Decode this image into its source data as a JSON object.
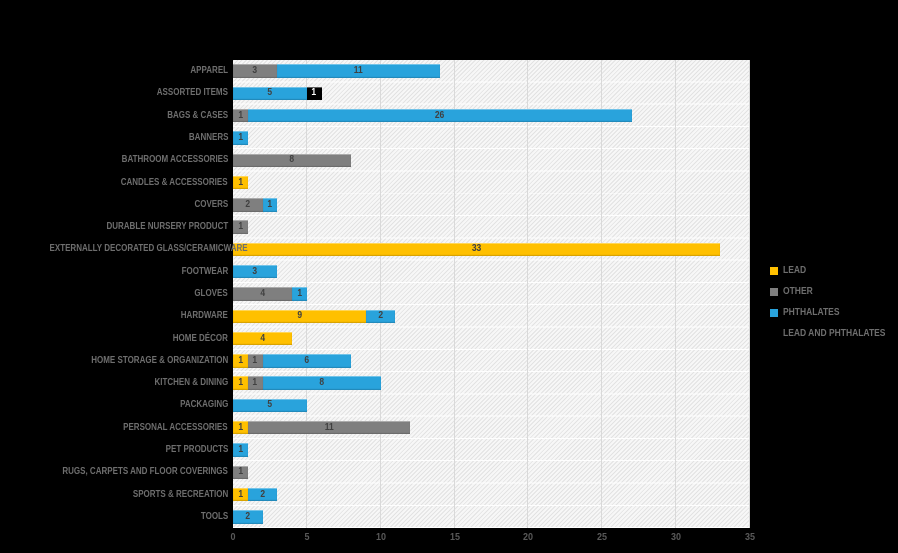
{
  "chart_data": {
    "type": "bar",
    "orientation": "horizontal-stacked",
    "title": "",
    "categories": [
      "APPAREL",
      "ASSORTED ITEMS",
      "BAGS & CASES",
      "BANNERS",
      "BATHROOM ACCESSORIES",
      "CANDLES & ACCESSORIES",
      "COVERS",
      "DURABLE NURSERY PRODUCT",
      "EXTERNALLY DECORATED GLASS/CERAMICWARE",
      "FOOTWEAR",
      "GLOVES",
      "HARDWARE",
      "HOME DÉCOR",
      "HOME STORAGE & ORGANIZATION",
      "KITCHEN & DINING",
      "PACKAGING",
      "PERSONAL ACCESSORIES",
      "PET PRODUCTS",
      "RUGS, CARPETS AND FLOOR COVERINGS",
      "SPORTS & RECREATION",
      "TOOLS"
    ],
    "series": [
      {
        "name": "LEAD",
        "color": "#FFC000",
        "values": [
          0,
          0,
          0,
          0,
          0,
          1,
          0,
          0,
          33,
          0,
          0,
          9,
          4,
          1,
          1,
          0,
          1,
          0,
          0,
          1,
          0
        ]
      },
      {
        "name": "OTHER",
        "color": "#7F7F7F",
        "values": [
          3,
          0,
          1,
          0,
          8,
          0,
          2,
          1,
          0,
          0,
          4,
          0,
          0,
          1,
          1,
          0,
          11,
          0,
          1,
          0,
          0
        ]
      },
      {
        "name": "PHTHALATES",
        "color": "#29A3DC",
        "values": [
          11,
          5,
          26,
          1,
          0,
          0,
          1,
          0,
          0,
          3,
          1,
          2,
          0,
          6,
          8,
          5,
          0,
          1,
          0,
          2,
          2
        ]
      },
      {
        "name": "LEAD AND PHTHALATES",
        "color": "#000000",
        "values": [
          0,
          1,
          0,
          0,
          0,
          0,
          0,
          0,
          0,
          0,
          0,
          0,
          0,
          0,
          0,
          0,
          0,
          0,
          0,
          0,
          0
        ]
      }
    ],
    "x_ticks": [
      0,
      5,
      10,
      15,
      20,
      25,
      30,
      35
    ],
    "xlim": [
      0,
      35
    ],
    "xlabel": "",
    "ylabel": "",
    "grid": "vertical",
    "legend_position": "right",
    "data_labels": true
  },
  "colors": {
    "background": "#000000",
    "plot_hatch_line": "#e2e2e2",
    "gridline": "#d9d9d9",
    "category_label": "#6e6e6e",
    "tick_label": "#595959",
    "value_label": "#404040",
    "value_label_on_dark": "#ffffff"
  }
}
